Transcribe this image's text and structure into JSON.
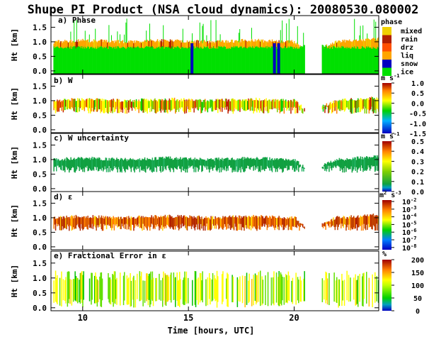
{
  "title": "Shupe PI Product (NSA cloud dynamics): 20080530.080002",
  "x_axis": {
    "label": "Time [hours, UTC]",
    "range": [
      8.5,
      24.0
    ],
    "ticks": [
      10,
      15,
      20
    ]
  },
  "panel_ylabel": "Ht [km]",
  "panel_yticks": [
    "0.0",
    "0.5",
    "1.0",
    "1.5"
  ],
  "colors": {
    "ice": "#00e000",
    "snow": "#0000c0",
    "liq": "#ffa500",
    "drz": "#ff5000",
    "rain": "#b02000",
    "mixed": "#f0d000",
    "yellow": "#ffff00",
    "green_dark": "#10a040"
  },
  "chart_data": [
    {
      "type": "heatmap",
      "title": "a) Phase",
      "ylabel": "Ht [km]",
      "xlabel": "",
      "ylim": [
        -0.1,
        1.9
      ],
      "xlim": [
        8.5,
        24.0
      ],
      "colorbar": {
        "title": "phase",
        "categories": [
          "mixed",
          "rain",
          "drz",
          "liq",
          "snow",
          "ice"
        ]
      },
      "cloud_top_km": {
        "x": [
          8.6,
          10,
          12,
          14,
          16,
          18,
          20,
          20.5,
          21.3,
          22,
          24
        ],
        "y": [
          1.0,
          1.05,
          1.0,
          1.05,
          1.0,
          1.05,
          1.0,
          0.7,
          0.8,
          1.0,
          1.1
        ]
      },
      "snow_columns_hours": [
        15.1,
        19.0,
        19.2
      ]
    },
    {
      "type": "heatmap",
      "title": "b) W",
      "ylabel": "Ht [km]",
      "xlabel": "",
      "ylim": [
        -0.1,
        1.9
      ],
      "xlim": [
        8.5,
        24.0
      ],
      "colorbar": {
        "title": "m s",
        "exponent": "-1",
        "ticks": [
          "1.0",
          "0.5",
          "0.0",
          "-0.5",
          "-1.0",
          "-1.5"
        ],
        "range": [
          -1.5,
          1.0
        ]
      }
    },
    {
      "type": "heatmap",
      "title": "c) W uncertainty",
      "ylabel": "Ht [km]",
      "xlabel": "",
      "ylim": [
        -0.1,
        1.9
      ],
      "xlim": [
        8.5,
        24.0
      ],
      "colorbar": {
        "title": "m s",
        "exponent": "-1",
        "ticks": [
          "0.5",
          "0.4",
          "0.3",
          "0.2",
          "0.1",
          "0.0"
        ],
        "range": [
          0.0,
          0.5
        ]
      },
      "typical_value": 0.05
    },
    {
      "type": "heatmap",
      "title": "d) ε",
      "ylabel": "Ht [km]",
      "xlabel": "",
      "ylim": [
        -0.1,
        1.9
      ],
      "xlim": [
        8.5,
        24.0
      ],
      "colorbar": {
        "title": "m",
        "exponents": [
          "2",
          "-3"
        ],
        "title_mid": " s",
        "ticks_base": "10",
        "tick_exponents": [
          "-2",
          "-3",
          "-4",
          "-5",
          "-6",
          "-7",
          "-8"
        ],
        "scale": "log"
      }
    },
    {
      "type": "heatmap",
      "title": "e) Fractional Error in ε",
      "ylabel": "Ht [km]",
      "xlabel": "Time [hours, UTC]",
      "ylim": [
        -0.1,
        1.9
      ],
      "xlim": [
        8.5,
        24.0
      ],
      "colorbar": {
        "title": "%",
        "ticks": [
          "200",
          "150",
          "100",
          "50",
          "0"
        ],
        "range": [
          0,
          200
        ]
      }
    }
  ]
}
